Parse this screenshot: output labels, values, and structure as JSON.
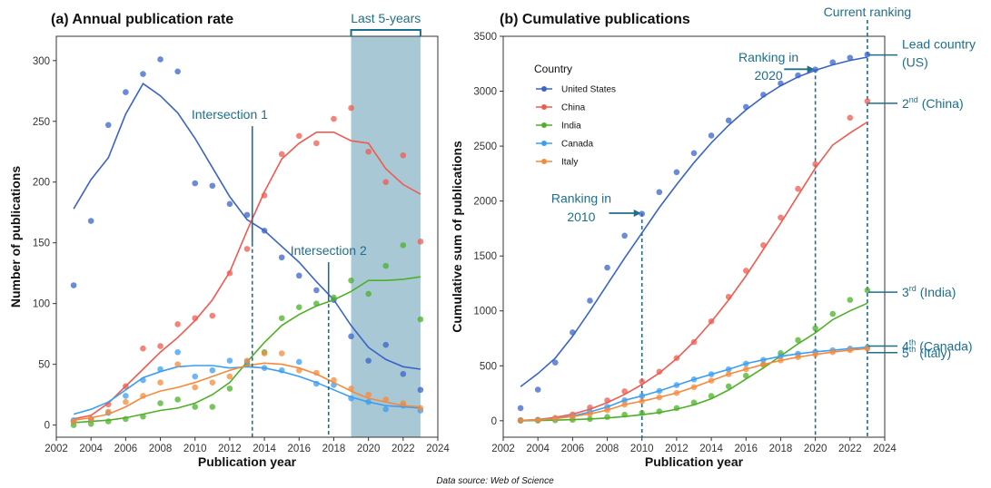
{
  "source_note": "Data source: Web of Science",
  "colors": {
    "United States": "#3a63c9",
    "China": "#f05a4f",
    "India": "#4db028",
    "Canada": "#3c9ef2",
    "Italy": "#f58a3c",
    "annotation": "#1f6e8c",
    "shade": "#a8c8d6"
  },
  "chart_data": [
    {
      "type": "scatter",
      "title": "(a) Annual publication rate",
      "xlabel": "Publication year",
      "ylabel": "Number of publications",
      "xlim": [
        2002,
        2024
      ],
      "ylim": [
        -10,
        320
      ],
      "xticks": [
        2002,
        2004,
        2006,
        2008,
        2010,
        2012,
        2014,
        2016,
        2018,
        2020,
        2022,
        2024
      ],
      "yticks": [
        0,
        50,
        100,
        150,
        200,
        250,
        300
      ],
      "grid": false,
      "highlight_range": {
        "x": [
          2019,
          2023
        ],
        "label": "Last 5-years"
      },
      "vlines": [
        {
          "x": 2013.3,
          "label": "Intersection 1",
          "label_x": 2012,
          "label_y": 252,
          "arrow_y": 150
        },
        {
          "x": 2017.7,
          "label": "Intersection 2",
          "label_x": 2017.7,
          "label_y": 140,
          "arrow_y": 105
        }
      ],
      "x": [
        2003,
        2004,
        2005,
        2006,
        2007,
        2008,
        2009,
        2010,
        2011,
        2012,
        2013,
        2014,
        2015,
        2016,
        2017,
        2018,
        2019,
        2020,
        2021,
        2022,
        2023
      ],
      "series": [
        {
          "name": "United States",
          "points": [
            115,
            168,
            247,
            274,
            289,
            301,
            291,
            199,
            197,
            182,
            173,
            160,
            138,
            123,
            111,
            103,
            73,
            53,
            66,
            42,
            29
          ],
          "trend": [
            178,
            202,
            220,
            256,
            281,
            271,
            257,
            236,
            212,
            188,
            169,
            160,
            147,
            134,
            118,
            103,
            82,
            64,
            54,
            48,
            46
          ]
        },
        {
          "name": "China",
          "points": [
            3,
            5,
            17,
            32,
            63,
            65,
            83,
            88,
            90,
            125,
            145,
            189,
            223,
            238,
            232,
            252,
            261,
            225,
            200,
            222,
            151
          ],
          "trend": [
            5,
            8,
            18,
            32,
            46,
            60,
            72,
            86,
            103,
            126,
            160,
            192,
            219,
            232,
            241,
            241,
            234,
            232,
            211,
            198,
            190
          ]
        },
        {
          "name": "India",
          "points": [
            0,
            1,
            3,
            5,
            7,
            18,
            21,
            15,
            15,
            30,
            50,
            60,
            88,
            97,
            100,
            105,
            119,
            108,
            131,
            148,
            87
          ],
          "trend": [
            2,
            3,
            4,
            6,
            9,
            12,
            14,
            18,
            25,
            35,
            52,
            68,
            82,
            91,
            98,
            103,
            110,
            119,
            119,
            120,
            122
          ]
        },
        {
          "name": "Canada",
          "points": [
            4,
            5,
            10,
            24,
            37,
            46,
            60,
            40,
            45,
            53,
            52,
            47,
            45,
            52,
            34,
            33,
            22,
            19,
            13,
            16,
            12
          ],
          "trend": [
            9,
            13,
            19,
            29,
            39,
            44,
            48,
            49,
            49,
            47,
            48,
            47,
            44,
            40,
            35,
            29,
            23,
            19,
            16,
            15,
            14
          ]
        },
        {
          "name": "Italy",
          "points": [
            3,
            5,
            11,
            19,
            24,
            35,
            50,
            31,
            35,
            40,
            53,
            59,
            59,
            45,
            43,
            37,
            30,
            25,
            21,
            18,
            14
          ],
          "trend": [
            4,
            6,
            9,
            15,
            23,
            28,
            31,
            35,
            40,
            45,
            49,
            51,
            50,
            47,
            42,
            35,
            28,
            22,
            19,
            16,
            15
          ]
        }
      ]
    },
    {
      "type": "line",
      "title": "(b) Cumulative publications",
      "xlabel": "Publication year",
      "ylabel": "Cumulative sum of publications",
      "xlim": [
        2002,
        2024
      ],
      "ylim": [
        -150,
        3500
      ],
      "xticks": [
        2002,
        2004,
        2006,
        2008,
        2010,
        2012,
        2014,
        2016,
        2018,
        2020,
        2022,
        2024
      ],
      "yticks": [
        0,
        500,
        1000,
        1500,
        2000,
        2500,
        3000,
        3500
      ],
      "grid": false,
      "legend": {
        "title": "Country",
        "position": "top-left",
        "entries": [
          "United States",
          "China",
          "India",
          "Canada",
          "Italy"
        ]
      },
      "vlines": [
        {
          "x": 2010,
          "label": [
            "Ranking in",
            "2010"
          ],
          "arrow_from": 2008.1,
          "arrow_y": 1890,
          "label_x": 2006.5,
          "label_y": [
            1985,
            1815
          ]
        },
        {
          "x": 2020,
          "label": [
            "Ranking in",
            "2020"
          ],
          "arrow_from": 2018.2,
          "arrow_y": 3200,
          "label_x": 2017.3,
          "label_y": [
            3270,
            3105
          ]
        },
        {
          "x": 2023,
          "label": [
            "Current ranking"
          ]
        }
      ],
      "end_labels": [
        {
          "series": "United States",
          "y": 3330,
          "lines": [
            "Lead country",
            "(US)"
          ]
        },
        {
          "series": "China",
          "y": 2890,
          "lines": [
            "2nd (China)"
          ],
          "rank": "2",
          "sup": "nd",
          "rest": " (China)"
        },
        {
          "series": "India",
          "y": 1170,
          "lines": [
            "3rd (India)"
          ],
          "rank": "3",
          "sup": "rd",
          "rest": " (India)"
        },
        {
          "series": "Canada",
          "y": 680,
          "lines": [
            "4th (Canada)"
          ],
          "rank": "4",
          "sup": "th",
          "rest": " (Canada)"
        },
        {
          "series": "Italy",
          "y": 620,
          "lines": [
            "5th (Italy)"
          ],
          "rank": "5",
          "sup": "th",
          "rest": " (Italy)"
        }
      ],
      "x": [
        2003,
        2004,
        2005,
        2006,
        2007,
        2008,
        2009,
        2010,
        2011,
        2012,
        2013,
        2014,
        2015,
        2016,
        2017,
        2018,
        2019,
        2020,
        2021,
        2022,
        2023
      ],
      "series": [
        {
          "name": "United States",
          "points": [
            115,
            283,
            530,
            804,
            1093,
            1394,
            1685,
            1884,
            2081,
            2263,
            2436,
            2596,
            2734,
            2857,
            2968,
            3071,
            3144,
            3197,
            3263,
            3305,
            3334
          ],
          "trend": [
            310,
            430,
            570,
            770,
            1000,
            1240,
            1480,
            1710,
            1940,
            2150,
            2350,
            2530,
            2690,
            2830,
            2950,
            3050,
            3130,
            3190,
            3240,
            3280,
            3310
          ]
        },
        {
          "name": "China",
          "points": [
            3,
            8,
            25,
            57,
            120,
            185,
            268,
            356,
            446,
            571,
            716,
            905,
            1128,
            1366,
            1598,
            1850,
            2111,
            2336,
            null,
            2758,
            2909
          ],
          "trend": [
            0,
            10,
            30,
            60,
            105,
            165,
            240,
            330,
            435,
            565,
            720,
            900,
            1100,
            1320,
            1560,
            1800,
            2050,
            2300,
            2510,
            2620,
            2720
          ]
        },
        {
          "name": "India",
          "points": [
            0,
            1,
            4,
            9,
            16,
            34,
            55,
            70,
            85,
            115,
            165,
            225,
            313,
            410,
            510,
            615,
            734,
            842,
            973,
            1100,
            1187
          ],
          "trend": [
            0,
            2,
            5,
            10,
            16,
            25,
            38,
            55,
            75,
            105,
            145,
            200,
            280,
            380,
            480,
            590,
            700,
            800,
            920,
            1000,
            1070
          ]
        },
        {
          "name": "Canada",
          "points": [
            4,
            9,
            19,
            43,
            80,
            126,
            186,
            226,
            271,
            324,
            376,
            423,
            468,
            520,
            554,
            587,
            609,
            628,
            641,
            657,
            669
          ]
        },
        {
          "name": "Italy",
          "points": [
            3,
            8,
            19,
            38,
            62,
            97,
            147,
            178,
            213,
            253,
            306,
            365,
            424,
            469,
            512,
            549,
            579,
            604,
            625,
            643,
            657
          ]
        }
      ]
    }
  ]
}
